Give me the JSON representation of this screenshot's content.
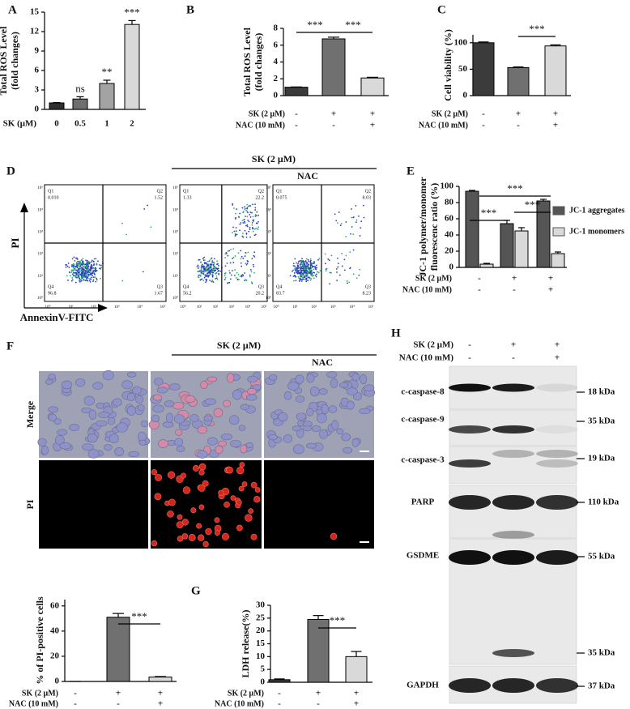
{
  "panel_letters": [
    "A",
    "B",
    "C",
    "D",
    "E",
    "F",
    "G",
    "H"
  ],
  "chart_data": [
    {
      "type": "bar",
      "y_label": [
        "Total ROS Level",
        "(fold changes)"
      ],
      "x_label": "SK (μM)",
      "categories": [
        "0",
        "0.5",
        "1",
        "2"
      ],
      "values": [
        1.0,
        1.6,
        4.0,
        13.1
      ],
      "errors": [
        0.05,
        0.35,
        0.5,
        0.6
      ],
      "colors": [
        "#2e2e2e",
        "#6e6e6e",
        "#a3a3a3",
        "#d9d9d9"
      ],
      "bar_annotations": [
        null,
        "ns",
        "**",
        "***"
      ],
      "ylim": [
        0,
        15
      ],
      "yticks": [
        0,
        3,
        6,
        9,
        12,
        15
      ]
    },
    {
      "type": "bar",
      "y_label": [
        "Total ROS Level",
        "(fold changes)"
      ],
      "conditions": [
        {
          "label": "SK (2 μM)",
          "signs": [
            "-",
            "+",
            "+"
          ]
        },
        {
          "label": "NAC (10 mM)",
          "signs": [
            "-",
            "-",
            "+"
          ]
        }
      ],
      "values": [
        1.0,
        6.75,
        2.1
      ],
      "errors": [
        0.03,
        0.2,
        0.08
      ],
      "colors": [
        "#3b3b3b",
        "#707070",
        "#d9d9d9"
      ],
      "annotations": [
        "***",
        "***"
      ],
      "ylim": [
        0,
        8
      ],
      "yticks": [
        0,
        2,
        4,
        6,
        8
      ]
    },
    {
      "type": "bar",
      "y_label": [
        "Cell viability (%)"
      ],
      "conditions": [
        {
          "label": "SK (2 μM)",
          "signs": [
            "-",
            "+",
            "+"
          ]
        },
        {
          "label": "NAC (10 mM)",
          "signs": [
            "-",
            "-",
            "+"
          ]
        }
      ],
      "values": [
        100,
        53,
        94
      ],
      "errors": [
        1.5,
        1.2,
        2
      ],
      "colors": [
        "#3b3b3b",
        "#707070",
        "#d9d9d9"
      ],
      "annotations": [
        "***"
      ],
      "ylim": [
        0,
        115
      ],
      "yticks": [
        0,
        50,
        100
      ]
    },
    {
      "type": "bar",
      "y_label": [
        "JC-1 polymer/monomer",
        "fluorescenc  ratio (%)"
      ],
      "conditions": [
        {
          "label": "SK (2 μM)",
          "signs": [
            "-",
            "+",
            "+"
          ]
        },
        {
          "label": "NAC (10 mM)",
          "signs": [
            "-",
            "-",
            "+"
          ]
        }
      ],
      "series": [
        {
          "name": "JC-1 aggregates",
          "color": "#555555",
          "values": [
            94,
            54,
            82
          ],
          "errors": [
            1,
            4,
            2
          ]
        },
        {
          "name": "JC-1 monomers",
          "color": "#d9d9d9",
          "values": [
            4,
            45,
            17
          ],
          "errors": [
            1,
            4,
            2
          ]
        }
      ],
      "annotations": [
        "***",
        "***",
        "***"
      ],
      "ylim": [
        0,
        100
      ],
      "yticks": [
        0,
        20,
        40,
        60,
        80,
        100
      ]
    },
    {
      "type": "bar",
      "y_label": [
        "% of PI-positive cells"
      ],
      "conditions": [
        {
          "label": "SK (2 μM)",
          "signs": [
            "-",
            "+",
            "+"
          ]
        },
        {
          "label": "NAC (10 mM)",
          "signs": [
            "-",
            "-",
            "+"
          ]
        }
      ],
      "values": [
        0,
        51,
        3.5
      ],
      "errors": [
        0,
        3,
        0.4
      ],
      "colors": [
        "#3b3b3b",
        "#707070",
        "#d9d9d9"
      ],
      "annotations": [
        "***"
      ],
      "ylim": [
        0,
        65
      ],
      "yticks": [
        0,
        20,
        40,
        60
      ]
    },
    {
      "type": "bar",
      "y_label": [
        "LDH release(%)"
      ],
      "conditions": [
        {
          "label": "SK (2 μM)",
          "signs": [
            "-",
            "+",
            "+"
          ]
        },
        {
          "label": "NAC (10 mM)",
          "signs": [
            "-",
            "-",
            "+"
          ]
        }
      ],
      "values": [
        1,
        24.5,
        10
      ],
      "errors": [
        0.3,
        1.5,
        2
      ],
      "colors": [
        "#3b3b3b",
        "#707070",
        "#d9d9d9"
      ],
      "annotations": [
        "***"
      ],
      "ylim": [
        0,
        30
      ],
      "yticks": [
        0,
        5,
        10,
        15,
        20,
        25,
        30
      ]
    }
  ],
  "flow": {
    "header": "SK (2 μM)",
    "nac": "NAC",
    "y_label": "PI",
    "x_label": "AnnexinV-FITC",
    "axis_ticks": [
      "10⁰",
      "10¹",
      "10²",
      "10³",
      "10⁴",
      "10⁵"
    ],
    "quadrant_names": [
      "Q1",
      "Q2",
      "Q3",
      "Q4"
    ],
    "plots": [
      [
        "0.010",
        "1.52",
        "1.67",
        "96.8"
      ],
      [
        "1.33",
        "22.2",
        "20.2",
        "56.2"
      ],
      [
        "0.075",
        "8.03",
        "8.23",
        "83.7"
      ]
    ]
  },
  "microscopy": {
    "header": "SK (2 μM)",
    "nac": "NAC",
    "rows": [
      "Merge",
      "PI"
    ]
  },
  "blot": {
    "conditions": [
      {
        "label": "SK (2 μM)",
        "signs": [
          "-",
          "+",
          "+"
        ]
      },
      {
        "label": "NAC (10 mM)",
        "signs": [
          "-",
          "-",
          "+"
        ]
      }
    ],
    "bands": [
      {
        "protein": "c-caspase-8",
        "sizes": [
          "18 kDa"
        ]
      },
      {
        "protein": "c-caspase-9",
        "sizes": [
          "35 kDa"
        ]
      },
      {
        "protein": "c-caspase-3",
        "sizes": [
          "19 kDa"
        ]
      },
      {
        "protein": "PARP",
        "sizes": [
          "110 kDa"
        ]
      },
      {
        "protein": "GSDME",
        "sizes": [
          "55 kDa",
          "35 kDa"
        ]
      },
      {
        "protein": "GAPDH",
        "sizes": [
          "37 kDa"
        ]
      }
    ]
  }
}
